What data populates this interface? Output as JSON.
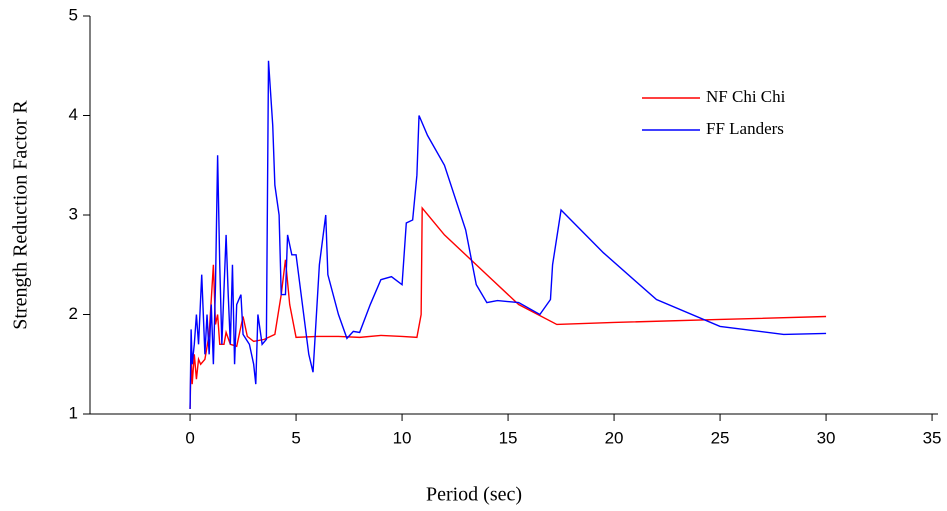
{
  "chart_data": {
    "type": "line",
    "x_label": "Period (sec)",
    "y_label": "Strength Reduction Factor R",
    "xlim": [
      -4.72,
      35.28
    ],
    "ylim": [
      1,
      5
    ],
    "xticks": [
      0,
      5,
      10,
      15,
      20,
      25,
      30,
      35
    ],
    "yticks": [
      1,
      2,
      3,
      4,
      5
    ],
    "grid": false,
    "legend": "upper right",
    "series": [
      {
        "name": "NF Chi Chi",
        "color": "#ff0000",
        "x": [
          0,
          0.05,
          0.1,
          0.2,
          0.3,
          0.4,
          0.5,
          0.7,
          0.9,
          1.1,
          1.2,
          1.3,
          1.4,
          1.6,
          1.7,
          1.9,
          2.2,
          2.5,
          2.7,
          3.0,
          3.5,
          4.0,
          4.3,
          4.5,
          4.7,
          5.0,
          6,
          7,
          8,
          9,
          10,
          10.7,
          10.9,
          10.95,
          12,
          14,
          15.5,
          17.3,
          20,
          25,
          30
        ],
        "values": [
          1.05,
          1.6,
          1.3,
          1.6,
          1.35,
          1.55,
          1.5,
          1.55,
          1.8,
          2.5,
          1.9,
          2.0,
          1.7,
          1.7,
          1.82,
          1.7,
          1.68,
          1.98,
          1.78,
          1.73,
          1.75,
          1.8,
          2.2,
          2.55,
          2.1,
          1.77,
          1.78,
          1.78,
          1.77,
          1.79,
          1.78,
          1.77,
          2.0,
          3.07,
          2.8,
          2.4,
          2.1,
          1.9,
          1.92,
          1.95,
          1.98
        ]
      },
      {
        "name": "FF Landers",
        "color": "#0000ff",
        "x": [
          0,
          0.05,
          0.1,
          0.2,
          0.3,
          0.4,
          0.55,
          0.7,
          0.8,
          0.9,
          1.0,
          1.1,
          1.2,
          1.3,
          1.4,
          1.5,
          1.7,
          1.8,
          1.9,
          2.0,
          2.1,
          2.2,
          2.4,
          2.5,
          2.8,
          3.0,
          3.1,
          3.2,
          3.4,
          3.6,
          3.7,
          3.9,
          4.0,
          4.2,
          4.3,
          4.5,
          4.6,
          4.8,
          5.0,
          5.3,
          5.6,
          5.8,
          6.1,
          6.4,
          6.5,
          7.0,
          7.4,
          7.7,
          8.0,
          8.5,
          9,
          9.5,
          10,
          10.2,
          10.5,
          10.7,
          10.8,
          11.2,
          12,
          13,
          13.5,
          14,
          14.5,
          15.5,
          16.5,
          17.0,
          17.1,
          17.5,
          19.5,
          22,
          25,
          28,
          30
        ],
        "values": [
          1.05,
          1.85,
          1.5,
          1.7,
          2.0,
          1.7,
          2.4,
          1.6,
          2.0,
          1.6,
          2.1,
          1.5,
          2.3,
          3.6,
          2.5,
          1.7,
          2.8,
          2.2,
          1.7,
          2.5,
          1.5,
          2.1,
          2.2,
          1.8,
          1.7,
          1.5,
          1.3,
          2.0,
          1.7,
          1.75,
          4.55,
          3.9,
          3.3,
          3.0,
          2.2,
          2.2,
          2.8,
          2.6,
          2.6,
          2.1,
          1.6,
          1.42,
          2.5,
          3.0,
          2.4,
          2.0,
          1.76,
          1.83,
          1.82,
          2.1,
          2.35,
          2.38,
          2.3,
          2.92,
          2.95,
          3.4,
          4.0,
          3.8,
          3.5,
          2.85,
          2.3,
          2.12,
          2.14,
          2.12,
          2.0,
          2.15,
          2.5,
          3.05,
          2.62,
          2.15,
          1.88,
          1.8,
          1.81
        ]
      }
    ]
  }
}
